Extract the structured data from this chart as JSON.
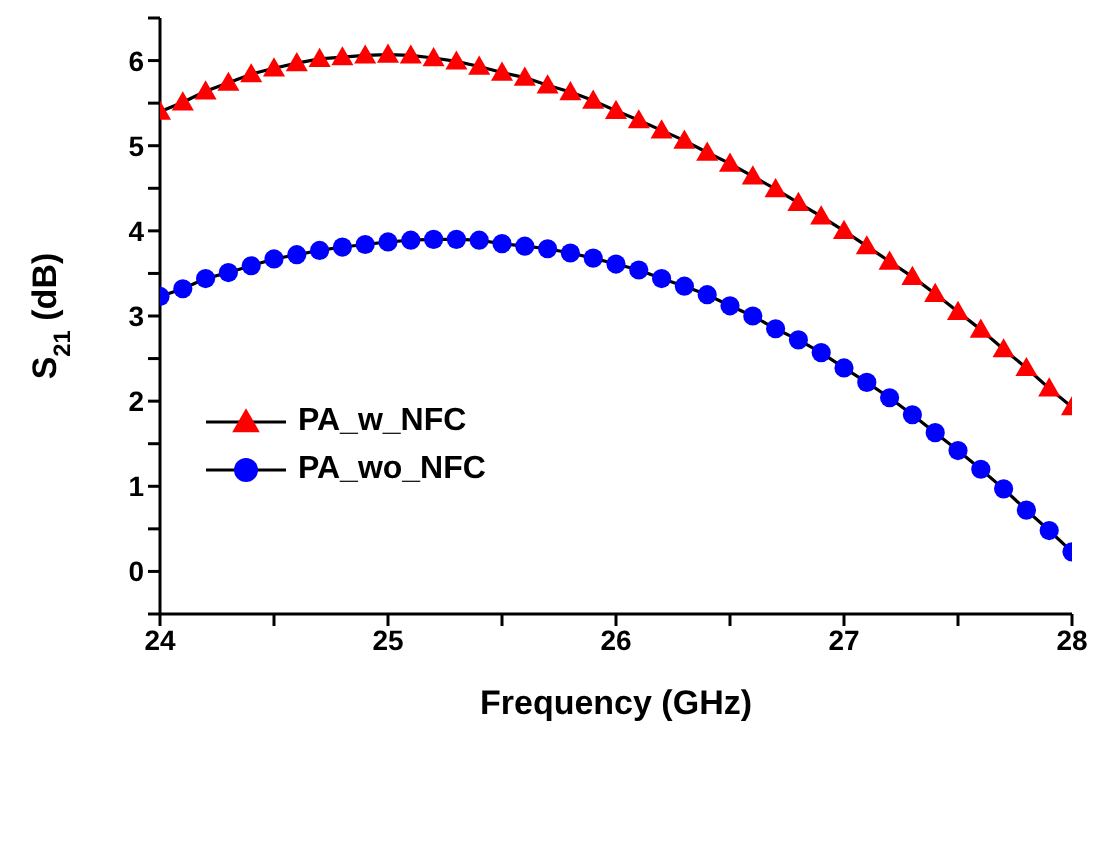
{
  "chart_data": {
    "type": "line",
    "xlabel": "Frequency (GHz)",
    "ylabel": "S$_{21}$ (dB)",
    "x": [
      24,
      24.1,
      24.2,
      24.3,
      24.4,
      24.5,
      24.6,
      24.7,
      24.8,
      24.9,
      25,
      25.1,
      25.2,
      25.3,
      25.4,
      25.5,
      25.6,
      25.7,
      25.8,
      25.9,
      26,
      26.1,
      26.2,
      26.3,
      26.4,
      26.5,
      26.6,
      26.7,
      26.8,
      26.9,
      27,
      27.1,
      27.2,
      27.3,
      27.4,
      27.5,
      27.6,
      27.7,
      27.8,
      27.9,
      28
    ],
    "series": [
      {
        "name": "PA_w_NFC",
        "color": "#ff0000",
        "marker": "triangle",
        "values": [
          5.4,
          5.51,
          5.64,
          5.74,
          5.84,
          5.91,
          5.97,
          6.02,
          6.04,
          6.06,
          6.07,
          6.06,
          6.03,
          5.99,
          5.93,
          5.86,
          5.8,
          5.71,
          5.63,
          5.53,
          5.41,
          5.3,
          5.18,
          5.06,
          4.92,
          4.79,
          4.64,
          4.49,
          4.33,
          4.17,
          4.0,
          3.82,
          3.64,
          3.46,
          3.26,
          3.05,
          2.84,
          2.61,
          2.39,
          2.15,
          1.93
        ]
      },
      {
        "name": "PA_wo_NFC",
        "color": "#0000ff",
        "marker": "circle",
        "values": [
          3.23,
          3.32,
          3.44,
          3.51,
          3.59,
          3.67,
          3.72,
          3.77,
          3.81,
          3.84,
          3.87,
          3.89,
          3.9,
          3.9,
          3.89,
          3.85,
          3.82,
          3.79,
          3.74,
          3.68,
          3.61,
          3.54,
          3.44,
          3.35,
          3.25,
          3.12,
          3.0,
          2.85,
          2.72,
          2.57,
          2.39,
          2.22,
          2.04,
          1.84,
          1.63,
          1.42,
          1.2,
          0.97,
          0.72,
          0.48,
          0.23
        ]
      }
    ],
    "xlim": [
      24,
      28
    ],
    "xticks": [
      24,
      {
        "value": 24.5,
        "label": null
      },
      25,
      {
        "value": 25.5,
        "label": null
      },
      26,
      {
        "value": 26.5,
        "label": null
      },
      27,
      {
        "value": 27.5,
        "label": null
      },
      28
    ],
    "ylim": [
      -0.5,
      6.5
    ],
    "yticks": [
      {
        "value": -0.5,
        "label": null
      },
      0,
      {
        "value": 0.5,
        "label": null
      },
      1,
      {
        "value": 1.5,
        "label": null
      },
      2,
      {
        "value": 2.5,
        "label": null
      },
      3,
      {
        "value": 3.5,
        "label": null
      },
      4,
      {
        "value": 4.5,
        "label": null
      },
      5,
      {
        "value": 5.5,
        "label": null
      },
      6,
      {
        "value": 6.5,
        "label": null
      }
    ],
    "grid": false,
    "legend": "left",
    "line_style": "solid"
  }
}
